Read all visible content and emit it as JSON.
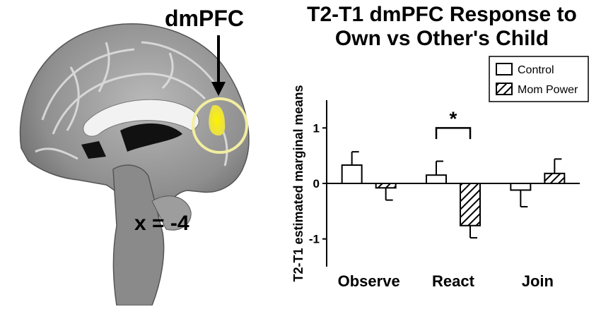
{
  "brain_image": {
    "region_label": "dmPFC",
    "slice_label": "x = -4",
    "highlight_color": "#f5ef2a",
    "circle_color": "#f2eea0"
  },
  "chart_data": {
    "type": "bar",
    "title_lines": [
      "T2-T1 dmPFC Response to",
      "Own vs Other's Child"
    ],
    "ylabel": "T2-T1 estimated marginal means",
    "xlabel": "",
    "categories": [
      "Observe",
      "React",
      "Join"
    ],
    "ylim": [
      -1.5,
      1.5
    ],
    "yticks": [
      1,
      0,
      -1
    ],
    "ytick_labels": [
      "1",
      "0",
      "-1"
    ],
    "series": [
      {
        "name": "Control",
        "values": [
          0.33,
          0.15,
          -0.12
        ],
        "errors": [
          0.24,
          0.25,
          0.3
        ],
        "pattern": "open"
      },
      {
        "name": "Mom Power",
        "values": [
          -0.08,
          -0.76,
          0.18
        ],
        "errors": [
          0.22,
          0.22,
          0.26
        ],
        "pattern": "hatched"
      }
    ],
    "significance": {
      "category": "React",
      "label": "*"
    },
    "legend_position": "top-right",
    "grid": false
  }
}
